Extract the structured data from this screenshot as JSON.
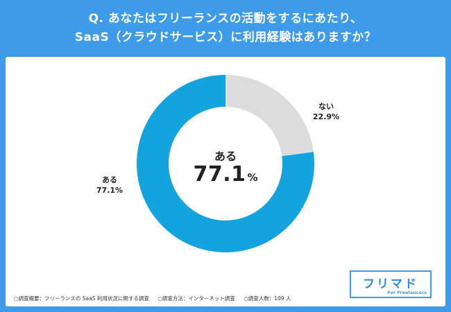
{
  "header": {
    "line1": "Q. あなたはフリーランスの活動をするにあたり、",
    "line2": "SaaS（クラウドサービス）に利用経験はありますか？"
  },
  "chart_data": {
    "type": "pie",
    "donut": true,
    "categories": [
      "ない",
      "ある"
    ],
    "values": [
      22.9,
      77.1
    ],
    "value_labels": [
      "22.9%",
      "77.1%"
    ],
    "colors": [
      "#dcdcdc",
      "#13a4e0"
    ],
    "center": {
      "label": "ある",
      "value": "77.1",
      "unit": "%"
    }
  },
  "footnote": {
    "item1": "○調査概要：フリーランスの SaaS 利用状況に関する調査",
    "item2": "○調査方法：インターネット調査",
    "item3": "○調査人数：109 人"
  },
  "logo": {
    "name": "フリマド",
    "tagline": "For Freelancers",
    "color": "#3d9be9"
  }
}
